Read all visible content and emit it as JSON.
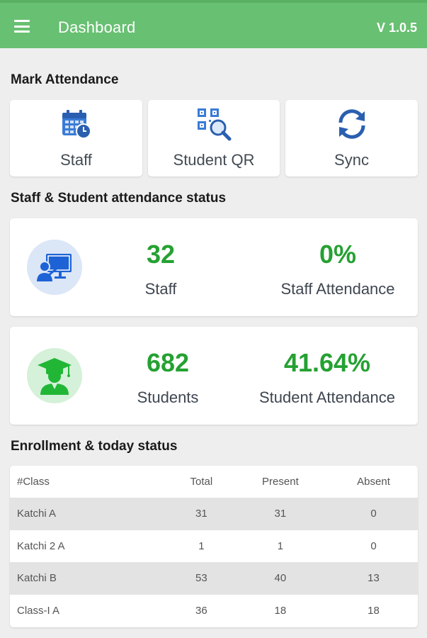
{
  "appbar": {
    "title": "Dashboard",
    "version": "V 1.0.5",
    "menu_icon": "hamburger-menu-icon",
    "color": "#68c072"
  },
  "mark_attendance": {
    "title": "Mark Attendance",
    "actions": [
      {
        "label": "Staff",
        "icon": "calendar-clock-icon"
      },
      {
        "label": "Student QR",
        "icon": "qr-search-icon"
      },
      {
        "label": "Sync",
        "icon": "sync-icon"
      }
    ]
  },
  "status": {
    "title": "Staff & Student attendance status",
    "staff": {
      "icon": "teacher-board-icon",
      "count": "32",
      "count_label": "Staff",
      "percent": "0%",
      "percent_label": "Staff Attendance"
    },
    "students": {
      "icon": "graduate-student-icon",
      "count": "682",
      "count_label": "Students",
      "percent": "41.64%",
      "percent_label": "Student Attendance"
    },
    "accent": "#25a132"
  },
  "enrollment": {
    "title": "Enrollment & today status",
    "headers": [
      "#Class",
      "Total",
      "Present",
      "Absent"
    ],
    "rows": [
      [
        "Katchi A",
        "31",
        "31",
        "0"
      ],
      [
        "Katchi 2 A",
        "1",
        "1",
        "0"
      ],
      [
        "Katchi B",
        "53",
        "40",
        "13"
      ],
      [
        "Class-I A",
        "36",
        "18",
        "18"
      ]
    ]
  }
}
